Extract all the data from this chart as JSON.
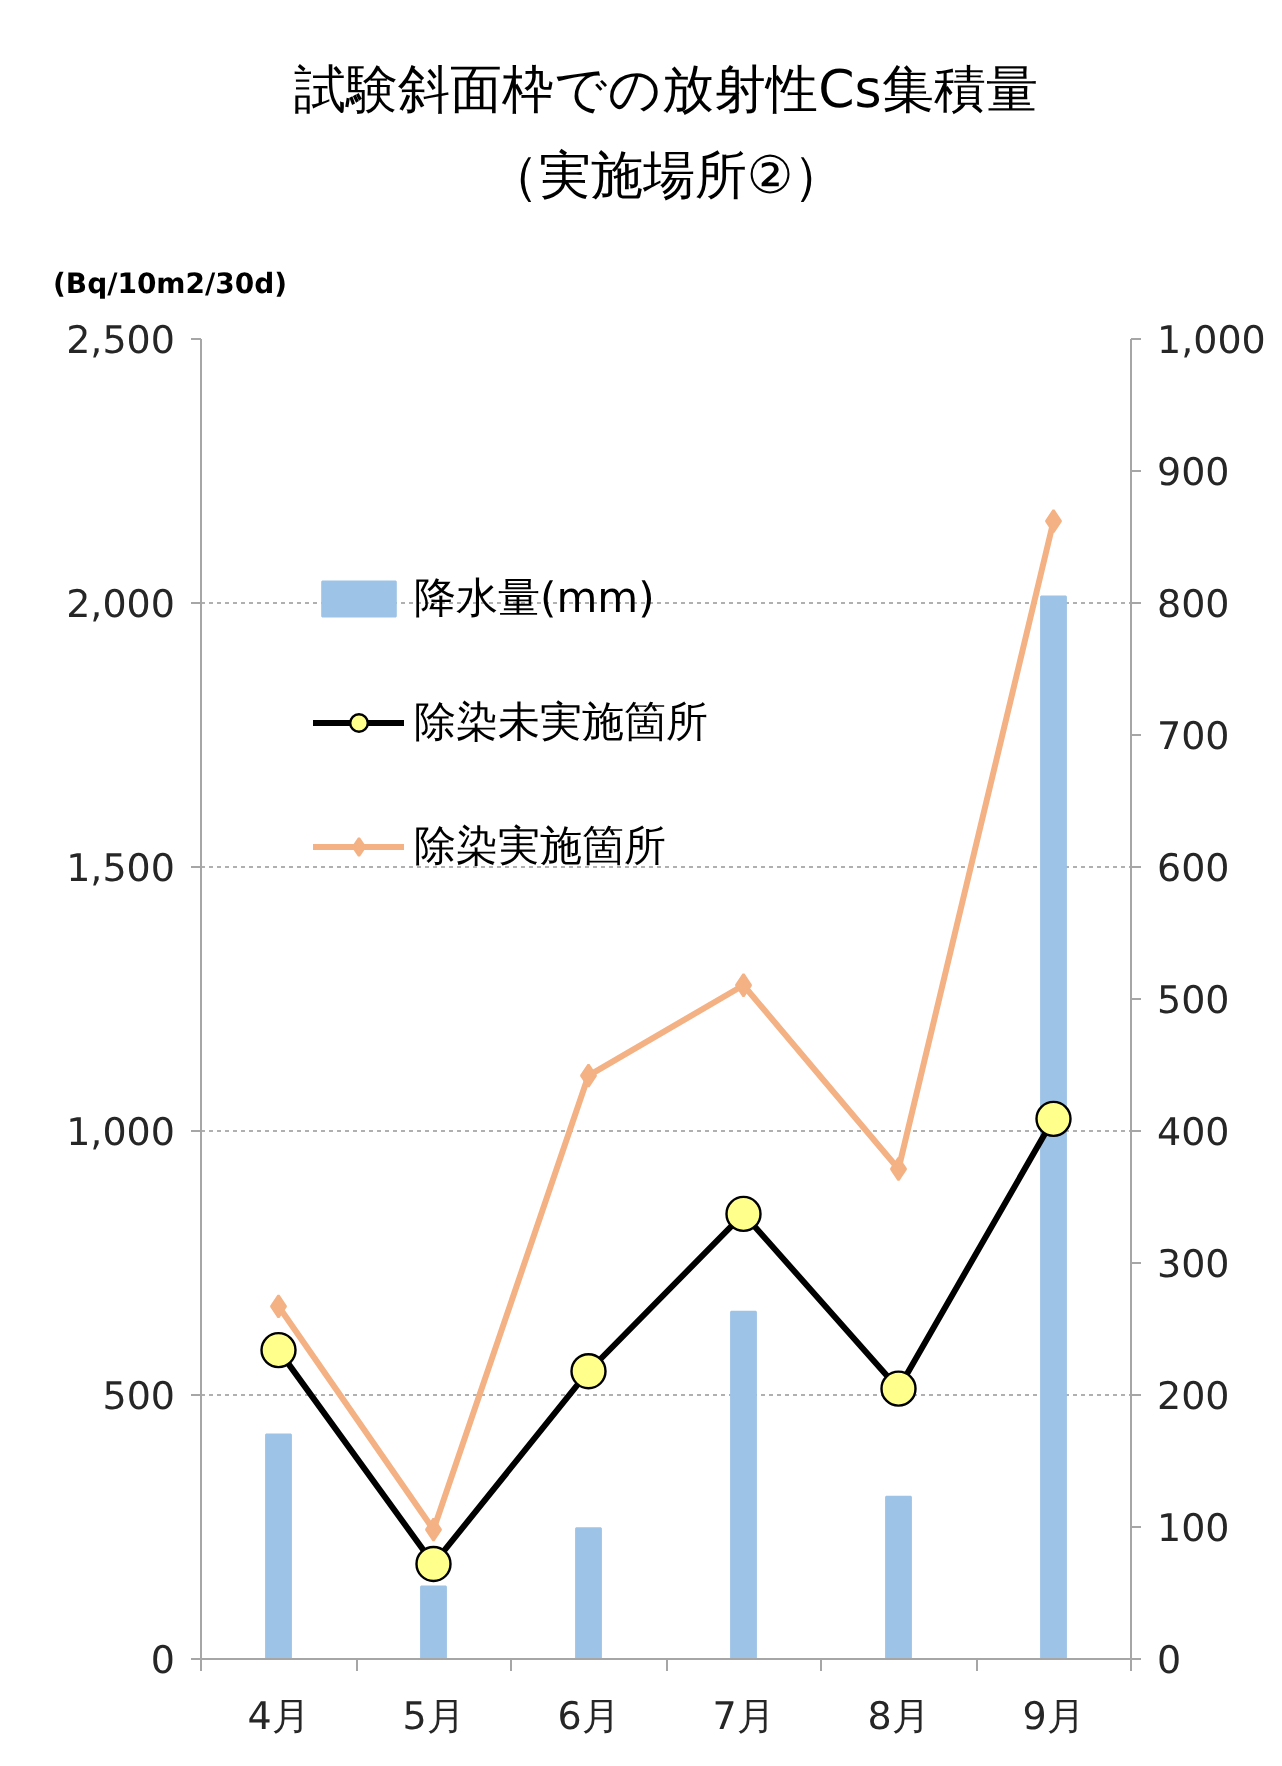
{
  "chart_data": {
    "type": "bar",
    "title": "試験斜面枠での放射性Cs集積量",
    "subtitle": "（実施場所②）",
    "ylabel": "(Bq/10m2/30d)",
    "categories": [
      "4月",
      "5月",
      "6月",
      "7月",
      "8月",
      "9月"
    ],
    "series": [
      {
        "name": "降水量(mm)",
        "axis": "y2",
        "color": "#9dc3e6",
        "values": [
          170,
          55,
          99,
          263,
          123,
          805
        ]
      },
      {
        "name": "除染未実施箇所",
        "type": "line",
        "marker": "circle",
        "color": "#000000",
        "values": [
          585,
          180,
          545,
          843,
          512,
          1023
        ]
      },
      {
        "name": "除染実施箇所",
        "type": "line",
        "marker": "diamond",
        "color": "#f4b183",
        "values": [
          668,
          245,
          1105,
          1276,
          928,
          2155
        ]
      }
    ],
    "ylim": [
      0,
      2500
    ],
    "yticks": [
      0,
      500,
      {
        "value": 1000,
        "label": "1,000"
      },
      {
        "value": 1500,
        "label": "1,500"
      },
      {
        "value": 2000,
        "label": "2,000"
      },
      {
        "value": 2500,
        "label": "2,500"
      }
    ],
    "y2lim": [
      0,
      1000
    ],
    "y2ticks": [
      0,
      100,
      200,
      300,
      400,
      500,
      600,
      700,
      800,
      900,
      {
        "value": 1000,
        "label": "1,000"
      }
    ],
    "grid": "y",
    "legend": "top left"
  }
}
